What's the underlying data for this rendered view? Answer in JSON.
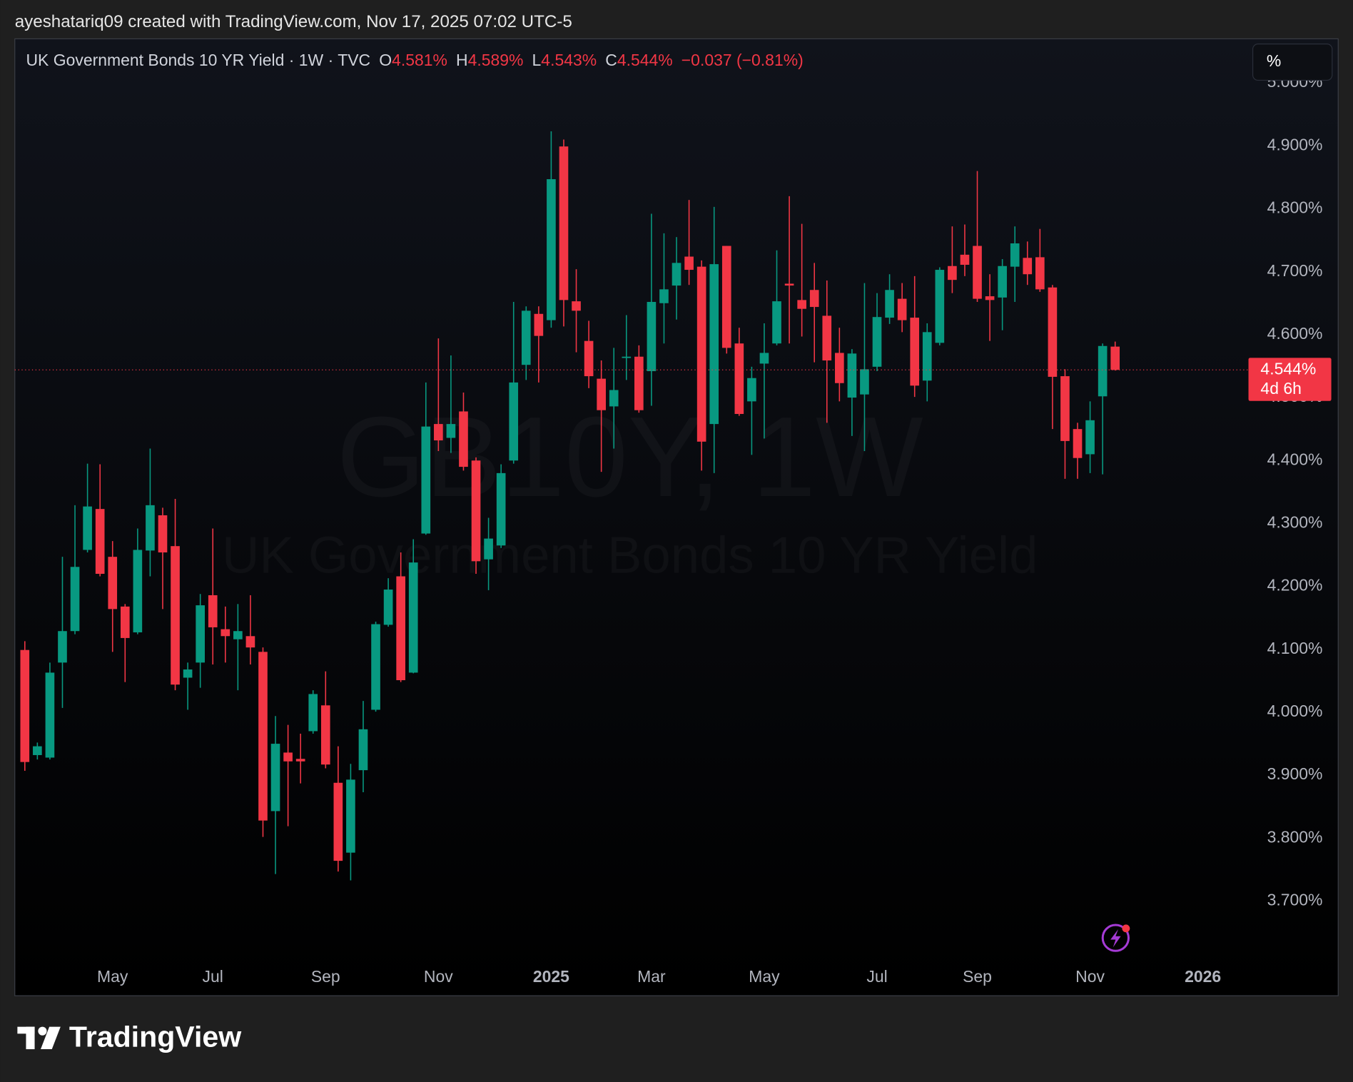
{
  "header": {
    "attribution": "ayeshatariq09 created with TradingView.com, Nov 17, 2025 07:02 UTC-5"
  },
  "chart_data": {
    "type": "candlestick",
    "legend": {
      "symbol": "UK Government Bonds 10 YR Yield · 1W · TVC",
      "ohlc": [
        {
          "key": "O",
          "text": "4.581%"
        },
        {
          "key": "H",
          "text": "4.589%"
        },
        {
          "key": "L",
          "text": "4.543%"
        },
        {
          "key": "C",
          "text": "4.544%"
        }
      ],
      "change": "−0.037 (−0.81%)"
    },
    "watermark": {
      "symbol": "GB10Y, 1W",
      "description": "UK Government Bonds 10 YR Yield"
    },
    "scale_button": "%",
    "up_color": "#089981",
    "down_color": "#f23645",
    "open": [
      4.099,
      3.932,
      3.928,
      4.079,
      4.129,
      4.258,
      4.323,
      4.247,
      4.168,
      4.127,
      4.257,
      4.313,
      4.264,
      4.055,
      4.079,
      4.186,
      4.132,
      4.116,
      4.121,
      4.096,
      3.843,
      3.936,
      3.926,
      3.97,
      4.011,
      3.888,
      3.777,
      3.908,
      4.004,
      4.139,
      4.216,
      4.063,
      4.284,
      4.458,
      4.436,
      4.478,
      4.4,
      4.243,
      4.265,
      4.4,
      4.552,
      4.633,
      4.623,
      4.899,
      4.653,
      4.59,
      4.53,
      4.486,
      4.563,
      4.565,
      4.542,
      4.65,
      4.678,
      4.724,
      4.708,
      4.458,
      4.741,
      4.586,
      4.494,
      4.554,
      4.586,
      4.681,
      4.655,
      4.671,
      4.63,
      4.571,
      4.5,
      4.505,
      4.549,
      4.627,
      4.657,
      4.627,
      4.527,
      4.587,
      4.709,
      4.727,
      4.741,
      4.661,
      4.659,
      4.708,
      4.722,
      4.723,
      4.675,
      4.534,
      4.45,
      4.41,
      4.502,
      4.581
    ],
    "high": [
      4.113,
      3.952,
      4.079,
      4.247,
      4.329,
      4.395,
      4.394,
      4.272,
      4.172,
      4.292,
      4.419,
      4.325,
      4.339,
      4.079,
      4.188,
      4.292,
      4.168,
      4.172,
      4.186,
      4.103,
      3.994,
      3.98,
      3.966,
      4.035,
      4.065,
      3.946,
      3.918,
      4.018,
      4.144,
      4.213,
      4.254,
      4.275,
      4.524,
      4.594,
      4.567,
      4.508,
      4.405,
      4.309,
      4.394,
      4.652,
      4.645,
      4.645,
      4.923,
      4.91,
      4.704,
      4.622,
      4.559,
      4.579,
      4.631,
      4.583,
      4.792,
      4.761,
      4.755,
      4.814,
      4.718,
      4.803,
      4.741,
      4.611,
      4.549,
      4.618,
      4.734,
      4.82,
      4.776,
      4.714,
      4.686,
      4.611,
      4.577,
      4.682,
      4.666,
      4.696,
      4.682,
      4.693,
      4.618,
      4.707,
      4.772,
      4.775,
      4.86,
      4.696,
      4.72,
      4.772,
      4.748,
      4.768,
      4.679,
      4.545,
      4.46,
      4.494,
      4.586,
      4.589
    ],
    "low": [
      3.907,
      3.925,
      3.925,
      4.007,
      4.124,
      4.254,
      4.216,
      4.096,
      4.048,
      4.124,
      4.216,
      4.164,
      4.035,
      4.004,
      4.039,
      4.076,
      4.079,
      4.035,
      4.076,
      3.802,
      3.743,
      3.819,
      3.887,
      3.966,
      3.911,
      3.747,
      3.733,
      3.873,
      4.001,
      4.136,
      4.048,
      4.062,
      4.282,
      4.415,
      4.412,
      4.384,
      4.22,
      4.194,
      4.261,
      4.395,
      4.528,
      4.524,
      4.611,
      4.613,
      4.572,
      4.515,
      4.382,
      4.419,
      4.528,
      4.476,
      4.487,
      4.586,
      4.624,
      4.679,
      4.384,
      4.38,
      4.57,
      4.471,
      4.409,
      4.435,
      4.583,
      4.586,
      4.597,
      4.556,
      4.46,
      4.494,
      4.439,
      4.415,
      4.542,
      4.617,
      4.604,
      4.501,
      4.494,
      4.583,
      4.666,
      4.693,
      4.652,
      4.59,
      4.607,
      4.652,
      4.679,
      4.668,
      4.45,
      4.371,
      4.371,
      4.38,
      4.378,
      4.543
    ],
    "close": [
      3.921,
      3.946,
      4.063,
      4.129,
      4.231,
      4.327,
      4.22,
      4.164,
      4.118,
      4.258,
      4.329,
      4.254,
      4.044,
      4.068,
      4.17,
      4.135,
      4.121,
      4.129,
      4.103,
      3.828,
      3.95,
      3.922,
      3.922,
      4.029,
      3.917,
      3.764,
      3.893,
      3.973,
      4.14,
      4.195,
      4.051,
      4.238,
      4.454,
      4.432,
      4.458,
      4.39,
      4.24,
      4.276,
      4.38,
      4.524,
      4.638,
      4.598,
      4.847,
      4.655,
      4.638,
      4.534,
      4.48,
      4.512,
      4.565,
      4.48,
      4.652,
      4.672,
      4.714,
      4.703,
      4.43,
      4.712,
      4.579,
      4.474,
      4.531,
      4.571,
      4.653,
      4.678,
      4.641,
      4.644,
      4.559,
      4.523,
      4.57,
      4.545,
      4.628,
      4.671,
      4.623,
      4.519,
      4.604,
      4.703,
      4.687,
      4.711,
      4.657,
      4.655,
      4.709,
      4.745,
      4.696,
      4.672,
      4.533,
      4.431,
      4.404,
      4.464,
      4.582,
      4.544
    ],
    "xlim": [
      -0.8,
      97.5
    ],
    "xticks": [
      {
        "value": 7,
        "label": "May"
      },
      {
        "value": 15,
        "label": "Jul"
      },
      {
        "value": 24,
        "label": "Sep"
      },
      {
        "value": 33,
        "label": "Nov"
      },
      {
        "value": 42,
        "label": "2025"
      },
      {
        "value": 50,
        "label": "Mar"
      },
      {
        "value": 59,
        "label": "May"
      },
      {
        "value": 68,
        "label": "Jul"
      },
      {
        "value": 76,
        "label": "Sep"
      },
      {
        "value": 85,
        "label": "Nov"
      },
      {
        "value": 94,
        "label": "2026"
      }
    ],
    "ylim": [
      3.61,
      5.07
    ],
    "yticks": [
      {
        "value": 3.7,
        "label": "3.700%"
      },
      {
        "value": 3.8,
        "label": "3.800%"
      },
      {
        "value": 3.9,
        "label": "3.900%"
      },
      {
        "value": 4.0,
        "label": "4.000%"
      },
      {
        "value": 4.1,
        "label": "4.100%"
      },
      {
        "value": 4.2,
        "label": "4.200%"
      },
      {
        "value": 4.3,
        "label": "4.300%"
      },
      {
        "value": 4.4,
        "label": "4.400%"
      },
      {
        "value": 4.5,
        "label": "4.500%"
      },
      {
        "value": 4.6,
        "label": "4.600%"
      },
      {
        "value": 4.7,
        "label": "4.700%"
      },
      {
        "value": 4.8,
        "label": "4.800%"
      },
      {
        "value": 4.9,
        "label": "4.900%"
      },
      {
        "value": 5.0,
        "label": "5.000%"
      }
    ],
    "last_price": {
      "value": 4.544,
      "label": "4.544%",
      "countdown": "4d 6h"
    }
  },
  "footer": {
    "brand": "TradingView"
  }
}
